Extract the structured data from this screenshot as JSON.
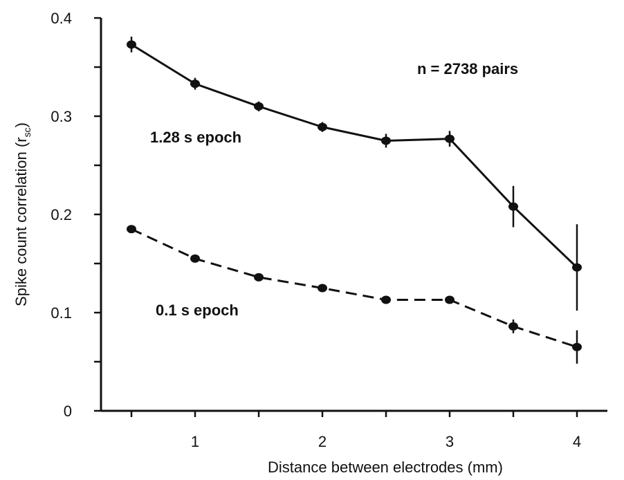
{
  "chart_data": {
    "type": "line",
    "xlabel": "Distance between electrodes (mm)",
    "ylabel_main": "Spike count correlation (r",
    "ylabel_sub": "sc",
    "ylabel_close": ")",
    "xlim": [
      0.3,
      4.3
    ],
    "ylim": [
      0,
      0.4
    ],
    "x_ticks": [
      1,
      2,
      3,
      4
    ],
    "x_minor_ticks": [
      0.5,
      1.5,
      2.5,
      3.5
    ],
    "y_ticks": [
      0,
      0.1,
      0.2,
      0.3,
      0.4
    ],
    "y_minor_ticks": [
      0.05,
      0.15,
      0.25,
      0.35
    ],
    "x_tick_labels": [
      "1",
      "2",
      "3",
      "4"
    ],
    "y_tick_labels": [
      "0",
      "0.1",
      "0.2",
      "0.3",
      "0.4"
    ],
    "grid": false,
    "series": [
      {
        "label": "1.28 s epoch",
        "style": "solid",
        "x": [
          0.5,
          1.0,
          1.5,
          2.0,
          2.5,
          3.0,
          3.5,
          4.0
        ],
        "y": [
          0.373,
          0.333,
          0.31,
          0.289,
          0.275,
          0.277,
          0.208,
          0.146
        ],
        "err": [
          0.008,
          0.006,
          0.005,
          0.005,
          0.007,
          0.008,
          0.021,
          0.044
        ]
      },
      {
        "label": "0.1 s epoch",
        "style": "dashed",
        "x": [
          0.5,
          1.0,
          1.5,
          2.0,
          2.5,
          3.0,
          3.5,
          4.0
        ],
        "y": [
          0.185,
          0.155,
          0.136,
          0.125,
          0.113,
          0.113,
          0.086,
          0.065
        ],
        "err": [
          0.004,
          0.002,
          0.002,
          0.002,
          0.002,
          0.003,
          0.007,
          0.017
        ]
      }
    ],
    "annotations": [
      "n = 2738 pairs"
    ]
  }
}
